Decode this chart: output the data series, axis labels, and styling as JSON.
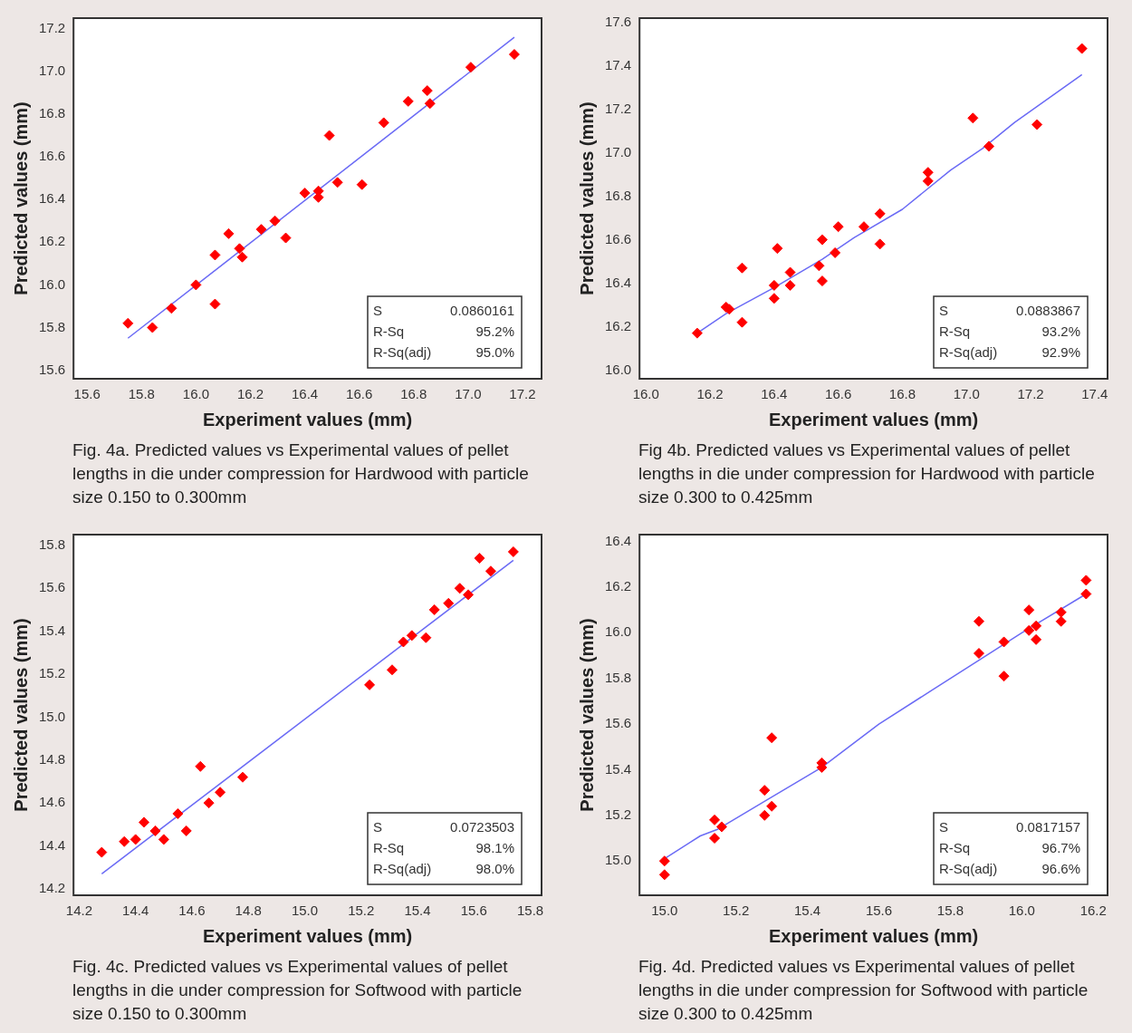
{
  "chart_data": [
    {
      "type": "scatter",
      "title": "Fig. 4a. Predicted values vs Experimental values of pellet lengths in die under compression for Hardwood with particle size 0.150 to 0.300mm",
      "xlabel": "Experiment values (mm)",
      "ylabel": "Predicted values (mm)",
      "annotations": [
        "S",
        "0.0860161",
        "R-Sq",
        "95.2%",
        "R-Sq(adj)",
        "95.0%"
      ],
      "xlim": [
        15.55,
        17.27
      ],
      "xticks": [
        15.6,
        15.8,
        {
          "value": 16,
          "label": "16.0"
        },
        16.2,
        16.4,
        16.6,
        16.8,
        {
          "value": 17,
          "label": "17.0"
        },
        17.2
      ],
      "ylim": [
        15.56,
        17.25
      ],
      "yticks": [
        15.6,
        15.8,
        {
          "value": 16,
          "label": "16.0"
        },
        16.2,
        16.4,
        16.6,
        16.8,
        {
          "value": 17,
          "label": "17.0"
        },
        17.2
      ],
      "series": [
        {
          "marker": "diamond",
          "color": "#ff0000",
          "x": [
            15.75,
            15.84,
            15.91,
            16.0,
            16.07,
            16.07,
            16.12,
            16.16,
            16.17,
            16.24,
            16.29,
            16.33,
            16.4,
            16.45,
            16.45,
            16.49,
            16.52,
            16.61,
            16.69,
            16.78,
            16.85,
            16.86,
            17.01,
            17.17
          ],
          "values": [
            15.82,
            15.8,
            15.89,
            16.0,
            16.14,
            15.91,
            16.24,
            16.17,
            16.13,
            16.26,
            16.3,
            16.22,
            16.43,
            16.41,
            16.44,
            16.7,
            16.48,
            16.47,
            16.76,
            16.86,
            16.91,
            16.85,
            17.02,
            17.08
          ]
        },
        {
          "type": "line",
          "marker": "none",
          "color": "#6b6bf5",
          "x": [
            15.75,
            17.17
          ],
          "values": [
            15.75,
            17.16
          ]
        }
      ]
    },
    {
      "type": "scatter",
      "title": "Fig 4b. Predicted values vs Experimental values of pellet lengths in die under compression for Hardwood with particle size 0.300 to 0.425mm",
      "xlabel": "Experiment values (mm)",
      "ylabel": "Predicted values (mm)",
      "annotations": [
        "S",
        "0.0883867",
        "R-Sq",
        "93.2%",
        "R-Sq(adj)",
        "92.9%"
      ],
      "xlim": [
        15.98,
        17.44
      ],
      "xticks": [
        {
          "value": 16,
          "label": "16.0"
        },
        16.2,
        16.4,
        16.6,
        16.8,
        {
          "value": 17,
          "label": "17.0"
        },
        17.2,
        17.4
      ],
      "ylim": [
        15.96,
        17.62
      ],
      "yticks": [
        {
          "value": 16,
          "label": "16.0"
        },
        16.2,
        16.4,
        16.6,
        16.8,
        {
          "value": 17,
          "label": "17.0"
        },
        17.2,
        17.4,
        17.6
      ],
      "series": [
        {
          "marker": "diamond",
          "color": "#ff0000",
          "x": [
            16.16,
            16.25,
            16.26,
            16.3,
            16.3,
            16.4,
            16.4,
            16.41,
            16.45,
            16.45,
            16.54,
            16.55,
            16.55,
            16.59,
            16.6,
            16.68,
            16.73,
            16.73,
            16.88,
            16.88,
            17.02,
            17.07,
            17.22,
            17.36
          ],
          "values": [
            16.17,
            16.29,
            16.28,
            16.47,
            16.22,
            16.39,
            16.33,
            16.56,
            16.45,
            16.39,
            16.48,
            16.6,
            16.41,
            16.54,
            16.66,
            16.66,
            16.72,
            16.58,
            16.91,
            16.87,
            17.16,
            17.03,
            17.13,
            17.48
          ]
        },
        {
          "type": "line",
          "marker": "none",
          "color": "#6b6bf5",
          "x": [
            16.16,
            16.25,
            16.4,
            16.55,
            16.65,
            16.8,
            16.95,
            17.05,
            17.15,
            17.36
          ],
          "values": [
            16.17,
            16.26,
            16.38,
            16.51,
            16.61,
            16.74,
            16.92,
            17.02,
            17.14,
            17.36
          ]
        }
      ]
    },
    {
      "type": "scatter",
      "title": "Fig. 4c. Predicted values vs Experimental values of pellet lengths in die under compression for Softwood with particle size 0.150 to 0.300mm",
      "xlabel": "Experiment values (mm)",
      "ylabel": "Predicted values (mm)",
      "annotations": [
        "S",
        "0.0723503",
        "R-Sq",
        "98.1%",
        "R-Sq(adj)",
        "98.0%"
      ],
      "xlim": [
        14.18,
        15.84
      ],
      "xticks": [
        14.2,
        14.4,
        14.6,
        14.8,
        {
          "value": 15,
          "label": "15.0"
        },
        15.2,
        15.4,
        15.6,
        15.8
      ],
      "ylim": [
        14.17,
        15.85
      ],
      "yticks": [
        14.2,
        14.4,
        14.6,
        14.8,
        {
          "value": 15,
          "label": "15.0"
        },
        15.2,
        15.4,
        15.6,
        15.8
      ],
      "series": [
        {
          "marker": "diamond",
          "color": "#ff0000",
          "x": [
            14.28,
            14.36,
            14.4,
            14.43,
            14.47,
            14.5,
            14.55,
            14.58,
            14.63,
            14.66,
            14.7,
            14.78,
            15.23,
            15.31,
            15.35,
            15.38,
            15.43,
            15.46,
            15.51,
            15.55,
            15.58,
            15.62,
            15.66,
            15.74
          ],
          "values": [
            14.37,
            14.42,
            14.43,
            14.51,
            14.47,
            14.43,
            14.55,
            14.47,
            14.77,
            14.6,
            14.65,
            14.72,
            15.15,
            15.22,
            15.35,
            15.38,
            15.37,
            15.5,
            15.53,
            15.6,
            15.57,
            15.74,
            15.68,
            15.77
          ]
        },
        {
          "type": "line",
          "marker": "none",
          "color": "#6b6bf5",
          "x": [
            14.28,
            15.74
          ],
          "values": [
            14.27,
            15.73
          ]
        }
      ]
    },
    {
      "type": "scatter",
      "title": "Fig. 4d. Predicted values vs Experimental values of pellet lengths in die under compression for Softwood with particle size 0.300 to 0.425mm",
      "xlabel": "Experiment values (mm)",
      "ylabel": "Predicted values (mm)",
      "annotations": [
        "S",
        "0.0817157",
        "R-Sq",
        "96.7%",
        "R-Sq(adj)",
        "96.6%"
      ],
      "xlim": [
        14.93,
        16.24
      ],
      "xticks": [
        {
          "value": 15,
          "label": "15.0"
        },
        15.2,
        15.4,
        15.6,
        15.8,
        {
          "value": 16,
          "label": "16.0"
        },
        16.2
      ],
      "ylim": [
        14.85,
        16.43
      ],
      "yticks": [
        {
          "value": 15,
          "label": "15.0"
        },
        15.2,
        15.4,
        15.6,
        15.8,
        {
          "value": 16,
          "label": "16.0"
        },
        16.2,
        16.4
      ],
      "series": [
        {
          "marker": "diamond",
          "color": "#ff0000",
          "x": [
            15.0,
            15.0,
            15.14,
            15.14,
            15.16,
            15.28,
            15.28,
            15.3,
            15.3,
            15.44,
            15.44,
            15.88,
            15.88,
            15.95,
            15.95,
            16.02,
            16.02,
            16.04,
            16.04,
            16.11,
            16.11,
            16.18,
            16.18
          ],
          "values": [
            15.0,
            14.94,
            15.18,
            15.1,
            15.15,
            15.31,
            15.2,
            15.54,
            15.24,
            15.43,
            15.41,
            16.05,
            15.91,
            15.96,
            15.81,
            16.1,
            16.01,
            16.03,
            15.97,
            16.09,
            16.05,
            16.23,
            16.17
          ]
        },
        {
          "type": "line",
          "marker": "none",
          "color": "#6b6bf5",
          "x": [
            15.0,
            15.1,
            15.15,
            15.3,
            15.44,
            15.6,
            15.88,
            16.0,
            16.18
          ],
          "values": [
            15.01,
            15.11,
            15.14,
            15.28,
            15.41,
            15.6,
            15.88,
            16.0,
            16.17
          ]
        }
      ]
    }
  ]
}
